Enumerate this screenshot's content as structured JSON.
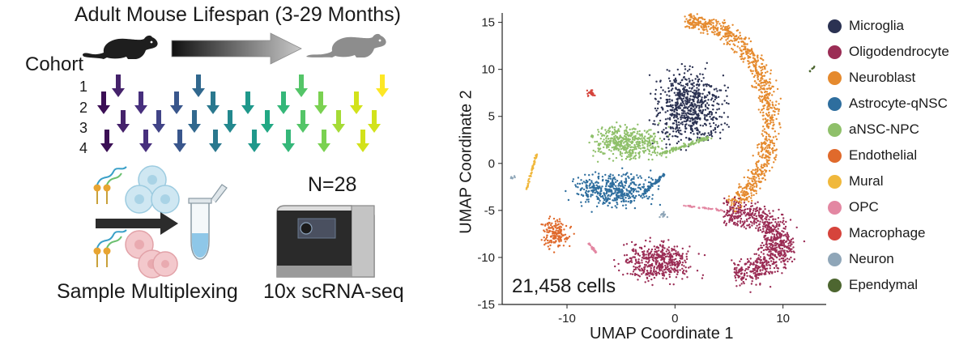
{
  "left": {
    "title": "Adult Mouse Lifespan (3-29 Months)",
    "cohort_label": "Cohort",
    "cohort_numbers": [
      "1",
      "2",
      "3",
      "4"
    ],
    "n_label": "N=28",
    "multiplexing_label": "Sample Multiplexing",
    "sequencing_label": "10x scRNA-seq"
  },
  "chart_data": {
    "type": "scatter",
    "xlabel": "UMAP Coordinate 1",
    "ylabel": "UMAP Coordinate 2",
    "xlim": [
      -16,
      14
    ],
    "ylim": [
      -15,
      16
    ],
    "x_ticks": [
      "-10",
      "0",
      "10"
    ],
    "y_ticks": [
      "15",
      "10",
      "5",
      "0",
      "-5",
      "-10",
      "-15"
    ],
    "annotation": "21,458 cells",
    "legend_placement": "right",
    "series": [
      {
        "name": "Microglia",
        "color": "#2b3252",
        "center": [
          1.5,
          6.0
        ]
      },
      {
        "name": "Oligodendrocyte",
        "color": "#9b2d55",
        "center": [
          3.0,
          -9.0
        ]
      },
      {
        "name": "Neuroblast",
        "color": "#e58a2e",
        "center": [
          6.0,
          9.0
        ]
      },
      {
        "name": "Astrocyte-qNSC",
        "color": "#2e6e9e",
        "center": [
          -6.0,
          -3.0
        ]
      },
      {
        "name": "aNSC-NPC",
        "color": "#8fc06a",
        "center": [
          -4.0,
          2.0
        ]
      },
      {
        "name": "Endothelial",
        "color": "#e06a2c",
        "center": [
          -10.5,
          -7.5
        ]
      },
      {
        "name": "Mural",
        "color": "#f0b83c",
        "center": [
          -13.5,
          -2.0
        ]
      },
      {
        "name": "OPC",
        "color": "#e387a2",
        "center": [
          -8.0,
          -9.0
        ]
      },
      {
        "name": "Macrophage",
        "color": "#d6443c",
        "center": [
          -7.5,
          7.5
        ]
      },
      {
        "name": "Neuron",
        "color": "#8fa6b8",
        "center": [
          -1.0,
          -5.5
        ]
      },
      {
        "name": "Ependymal",
        "color": "#4d6630",
        "center": [
          12.5,
          10.0
        ]
      }
    ]
  }
}
